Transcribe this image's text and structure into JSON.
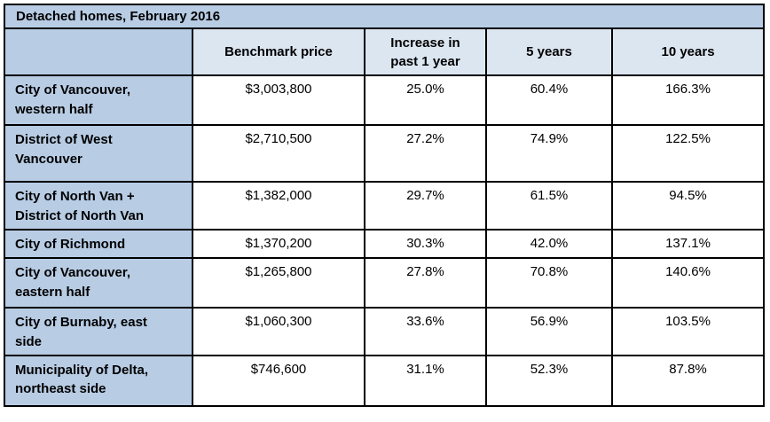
{
  "title": "Detached homes, February 2016",
  "columns": [
    "Benchmark price",
    "Increase in\npast 1 year",
    "5 years",
    "10 years"
  ],
  "rows": [
    {
      "label": "City of Vancouver,\nwestern half",
      "price": "$3,003,800",
      "y1": "25.0%",
      "y5": "60.4%",
      "y10": "166.3%"
    },
    {
      "label": "District of West\nVancouver",
      "price": "$2,710,500",
      "y1": "27.2%",
      "y5": "74.9%",
      "y10": "122.5%"
    },
    {
      "label": "City of North Van +\nDistrict of North Van",
      "price": "$1,382,000",
      "y1": "29.7%",
      "y5": "61.5%",
      "y10": "94.5%"
    },
    {
      "label": "City of Richmond",
      "price": "$1,370,200",
      "y1": "30.3%",
      "y5": "42.0%",
      "y10": "137.1%"
    },
    {
      "label": "City of Vancouver,\neastern half",
      "price": "$1,265,800",
      "y1": "27.8%",
      "y5": "70.8%",
      "y10": "140.6%"
    },
    {
      "label": "City of Burnaby, east\nside",
      "price": "$1,060,300",
      "y1": "33.6%",
      "y5": "56.9%",
      "y10": "103.5%"
    },
    {
      "label": "Municipality of Delta,\nnortheast side",
      "price": "$746,600",
      "y1": "31.1%",
      "y5": "52.3%",
      "y10": "87.8%"
    }
  ],
  "colors": {
    "medium_blue": "#B8CCE4",
    "light_blue": "#DCE6F1",
    "border": "#000000",
    "text": "#000000"
  },
  "chart_data": {
    "type": "table",
    "title": "Detached homes, February 2016",
    "columns": [
      "",
      "Benchmark price",
      "Increase in past 1 year",
      "5 years",
      "10 years"
    ],
    "categories": [
      "City of Vancouver, western half",
      "District of West Vancouver",
      "City of North Van + District of North Van",
      "City of Richmond",
      "City of Vancouver, eastern half",
      "City of Burnaby, east side",
      "Municipality of Delta, northeast side"
    ],
    "series": [
      {
        "name": "Benchmark price (CAD)",
        "values": [
          3003800,
          2710500,
          1382000,
          1370200,
          1265800,
          1060300,
          746600
        ]
      },
      {
        "name": "Increase in past 1 year (%)",
        "values": [
          25.0,
          27.2,
          29.7,
          30.3,
          27.8,
          33.6,
          31.1
        ]
      },
      {
        "name": "5 years (%)",
        "values": [
          60.4,
          74.9,
          61.5,
          42.0,
          70.8,
          56.9,
          52.3
        ]
      },
      {
        "name": "10 years (%)",
        "values": [
          166.3,
          122.5,
          94.5,
          137.1,
          140.6,
          103.5,
          87.8
        ]
      }
    ]
  }
}
